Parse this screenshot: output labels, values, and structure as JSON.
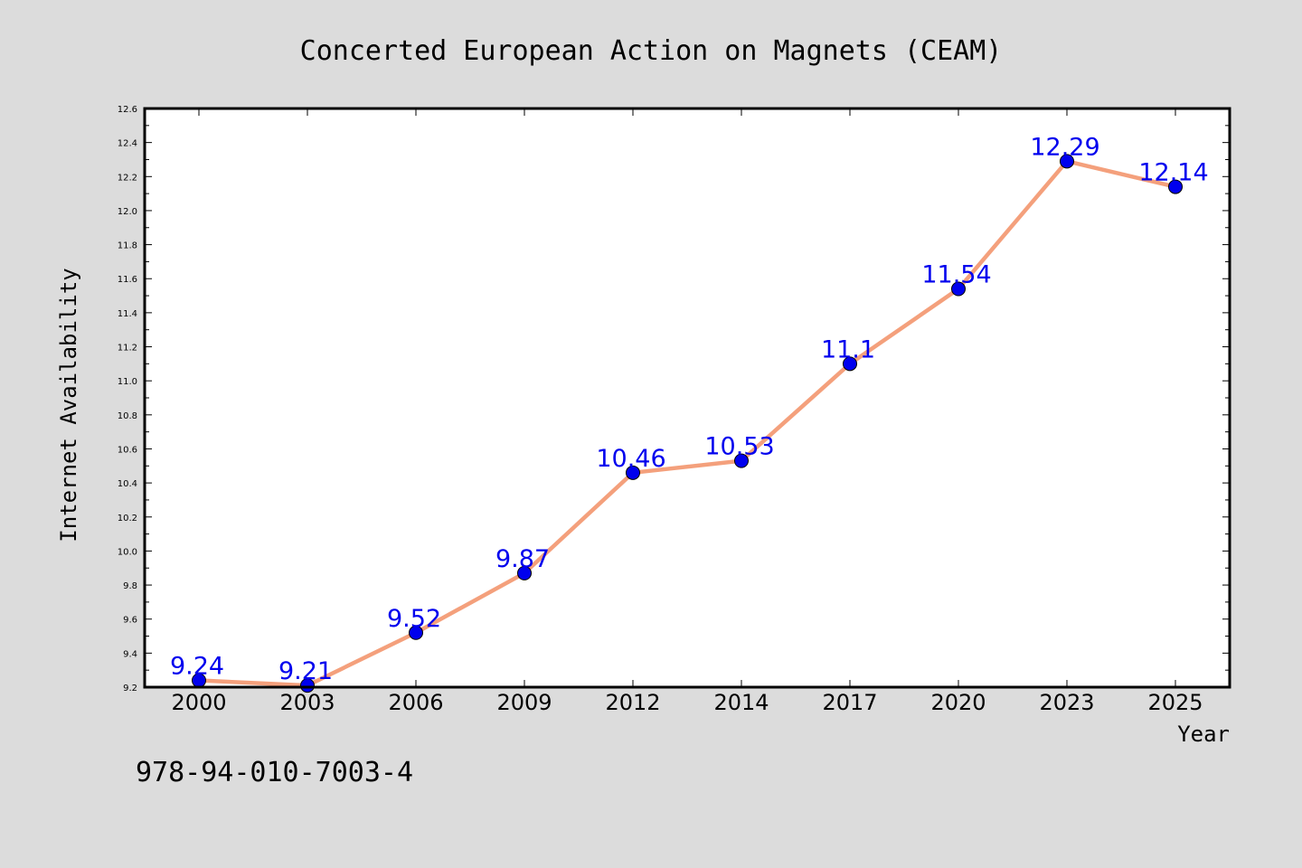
{
  "chart_data": {
    "type": "line",
    "title": "Concerted European Action on Magnets (CEAM)",
    "xlabel": "Year",
    "ylabel": "Internet Availability",
    "categories": [
      "2000",
      "2003",
      "2006",
      "2009",
      "2012",
      "2014",
      "2017",
      "2020",
      "2023",
      "2025"
    ],
    "series": [
      {
        "values": [
          9.24,
          9.21,
          9.52,
          9.87,
          10.46,
          10.53,
          11.1,
          11.54,
          12.29,
          12.14
        ],
        "data_labels": [
          "9.24",
          "9.21",
          "9.52",
          "9.87",
          "10.46",
          "10.53",
          "11.1",
          "11.54",
          "12.29",
          "12.14"
        ]
      }
    ],
    "ylim": [
      9.2,
      12.6
    ],
    "y_ticks": [
      "9.2",
      "9.4",
      "9.6",
      "9.8",
      "10.0",
      "10.2",
      "10.4",
      "10.6",
      "10.8",
      "11.0",
      "11.2",
      "11.4",
      "11.6",
      "11.8",
      "12.0",
      "12.2",
      "12.4",
      "12.6"
    ],
    "grid": false,
    "legend": "none"
  },
  "footnote": "978-94-010-7003-4",
  "colors": {
    "background": "#dcdcdc",
    "plot_background": "#ffffff",
    "line": "#f4a07c",
    "marker": "#0000ee",
    "data_label": "#0000ee"
  }
}
